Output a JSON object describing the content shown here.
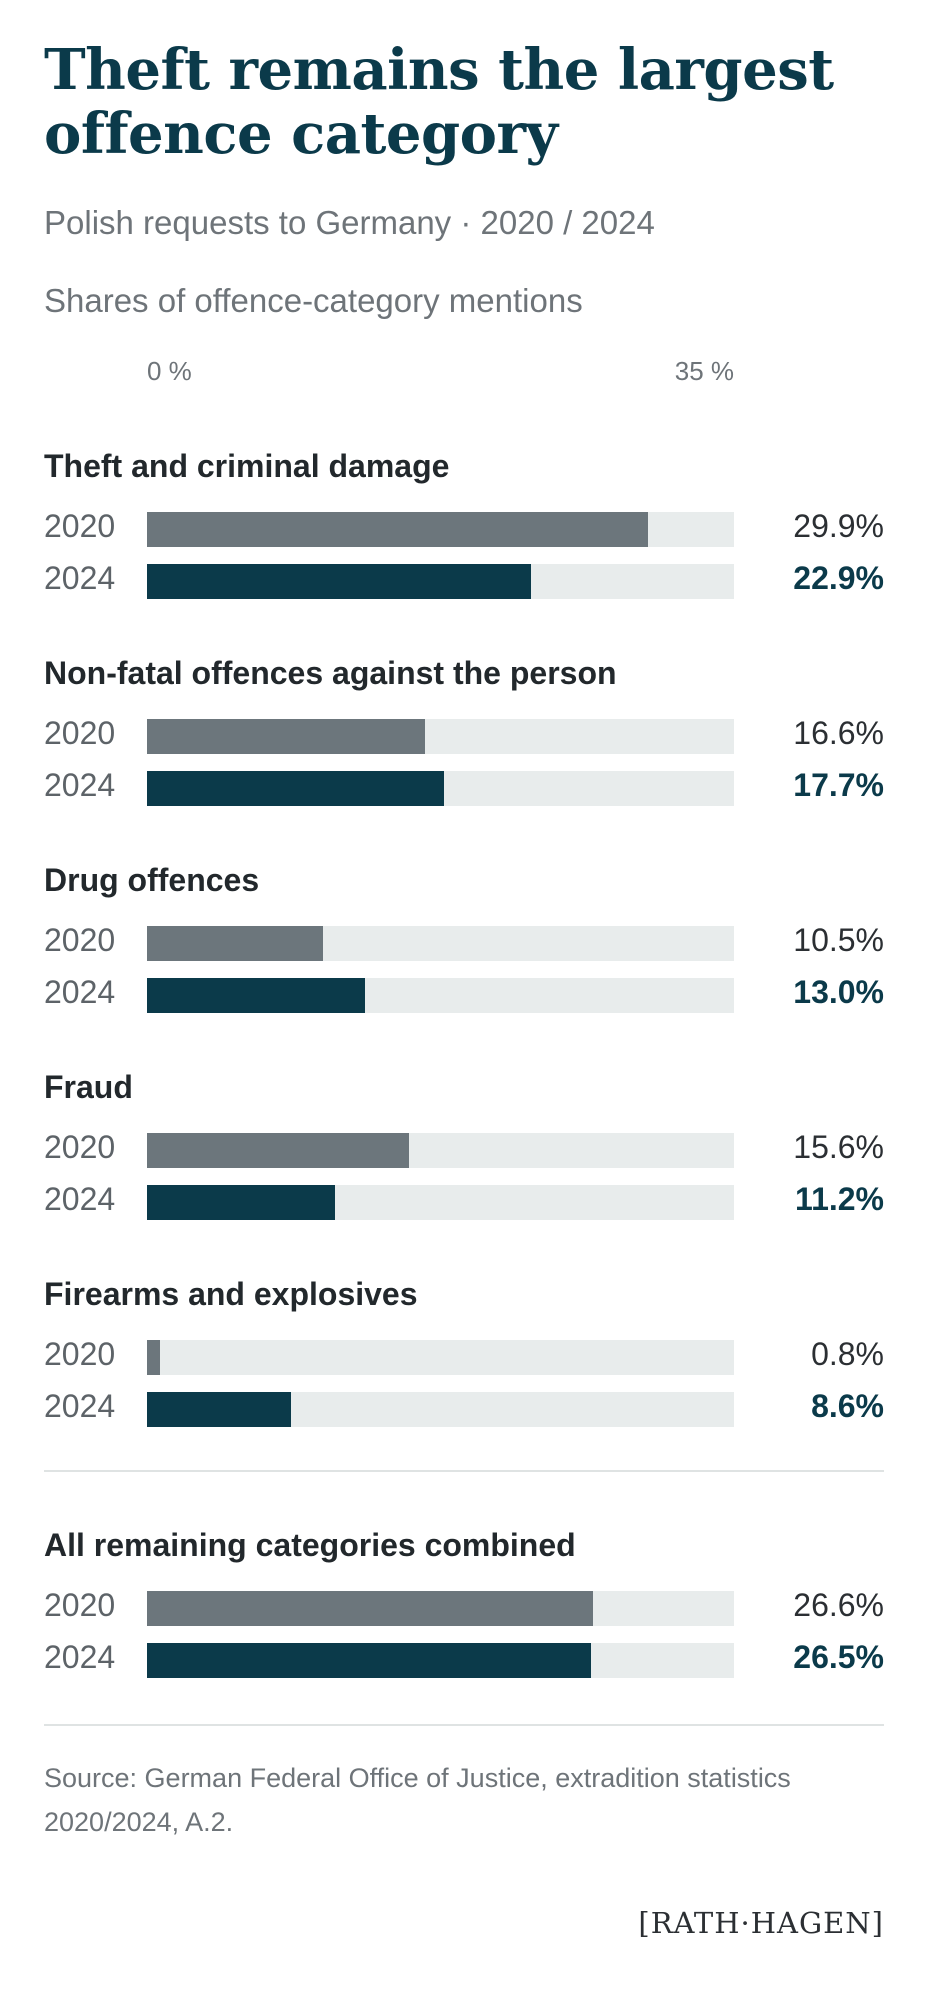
{
  "chart_data": {
    "type": "bar",
    "title": "Theft remains the largest offence category",
    "subtitle": "Polish requests to Germany · 2020 / 2024",
    "note": "Shares of offence-category mentions",
    "scale": {
      "min_label": "0 %",
      "max_label": "35 %",
      "min": 0,
      "max": 35
    },
    "orientation": "horizontal",
    "colors": {
      "2020": "#6c767c",
      "2024": "#0b3a4a",
      "track": "#e8ecec"
    },
    "series": [
      {
        "name": "2020"
      },
      {
        "name": "2024"
      }
    ],
    "categories": [
      {
        "label": "Theft and criminal damage",
        "rows": [
          {
            "year": "2020",
            "value": 29.9,
            "value_label": "29.9%"
          },
          {
            "year": "2024",
            "value": 22.9,
            "value_label": "22.9%"
          }
        ]
      },
      {
        "label": "Non-fatal offences against the person",
        "rows": [
          {
            "year": "2020",
            "value": 16.6,
            "value_label": "16.6%"
          },
          {
            "year": "2024",
            "value": 17.7,
            "value_label": "17.7%"
          }
        ]
      },
      {
        "label": "Drug offences",
        "rows": [
          {
            "year": "2020",
            "value": 10.5,
            "value_label": "10.5%"
          },
          {
            "year": "2024",
            "value": 13.0,
            "value_label": "13.0%"
          }
        ]
      },
      {
        "label": "Fraud",
        "rows": [
          {
            "year": "2020",
            "value": 15.6,
            "value_label": "15.6%"
          },
          {
            "year": "2024",
            "value": 11.2,
            "value_label": "11.2%"
          }
        ]
      },
      {
        "label": "Firearms and explosives",
        "rows": [
          {
            "year": "2020",
            "value": 0.8,
            "value_label": "0.8%"
          },
          {
            "year": "2024",
            "value": 8.6,
            "value_label": "8.6%"
          }
        ]
      },
      {
        "label": "All remaining categories combined",
        "rows": [
          {
            "year": "2020",
            "value": 26.6,
            "value_label": "26.6%"
          },
          {
            "year": "2024",
            "value": 26.5,
            "value_label": "26.5%"
          }
        ]
      }
    ],
    "source": "Source: German Federal Office of Justice, extradition statistics 2020/2024, A.2."
  },
  "brand": {
    "logo_text": "[RATH·HAGEN]"
  }
}
